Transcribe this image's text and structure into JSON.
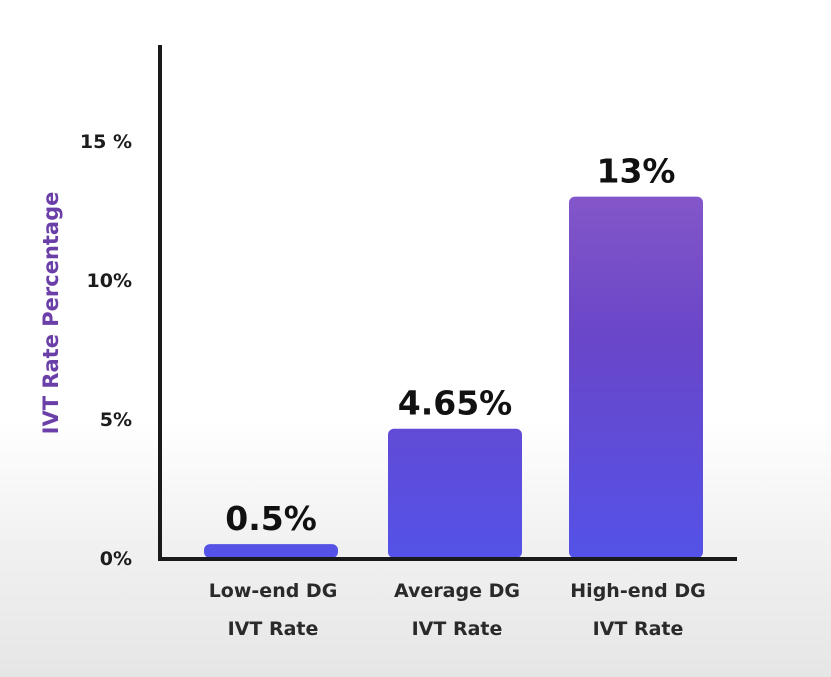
{
  "chart_data": {
    "type": "bar",
    "categories": [
      [
        "Low-end DG",
        "IVT Rate"
      ],
      [
        "Average DG",
        "IVT Rate"
      ],
      [
        "High-end DG",
        "IVT Rate"
      ]
    ],
    "values": [
      0.5,
      4.65,
      13
    ],
    "data_labels": [
      "0.5%",
      "4.65%",
      "13%"
    ],
    "title": "",
    "xlabel": "",
    "ylabel": "IVT Rate Percentage",
    "yticks": [
      {
        "value": 0,
        "label": "0%"
      },
      {
        "value": 5,
        "label": "5%"
      },
      {
        "value": 10,
        "label": "10%"
      },
      {
        "value": 15,
        "label": "15 %"
      }
    ],
    "ylim": [
      0,
      18
    ],
    "grid": false,
    "colors": {
      "bar_top": "#8a5ccc",
      "bar_bottom": "#5a54e6",
      "ylabel": "#6b3fa8",
      "axis": "#1a1a1a"
    }
  }
}
